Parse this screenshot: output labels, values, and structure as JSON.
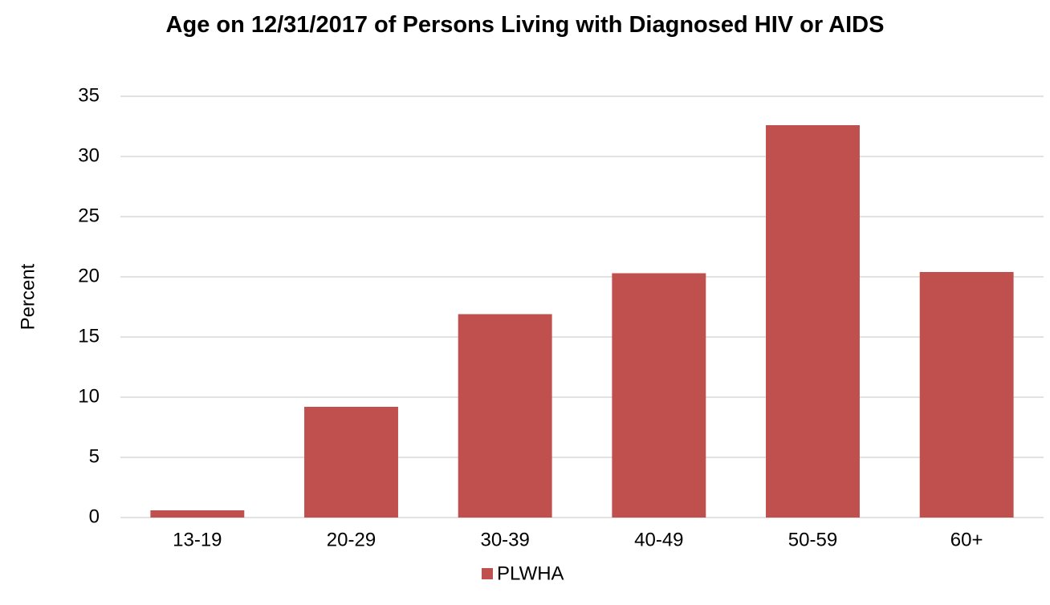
{
  "chart_data": {
    "type": "bar",
    "title": "Age on 12/31/2017 of Persons Living with Diagnosed HIV or AIDS",
    "ylabel": "Percent",
    "categories": [
      "13-19",
      "20-29",
      "30-39",
      "40-49",
      "50-59",
      "60+"
    ],
    "series": [
      {
        "name": "PLWHA",
        "color": "#c0504d",
        "values": [
          0.6,
          9.2,
          16.9,
          20.3,
          32.6,
          20.4
        ]
      }
    ],
    "ylim": [
      0,
      35
    ],
    "yticks": [
      0,
      5,
      10,
      15,
      20,
      25,
      30,
      35
    ],
    "grid": true,
    "legend": "bottom"
  }
}
